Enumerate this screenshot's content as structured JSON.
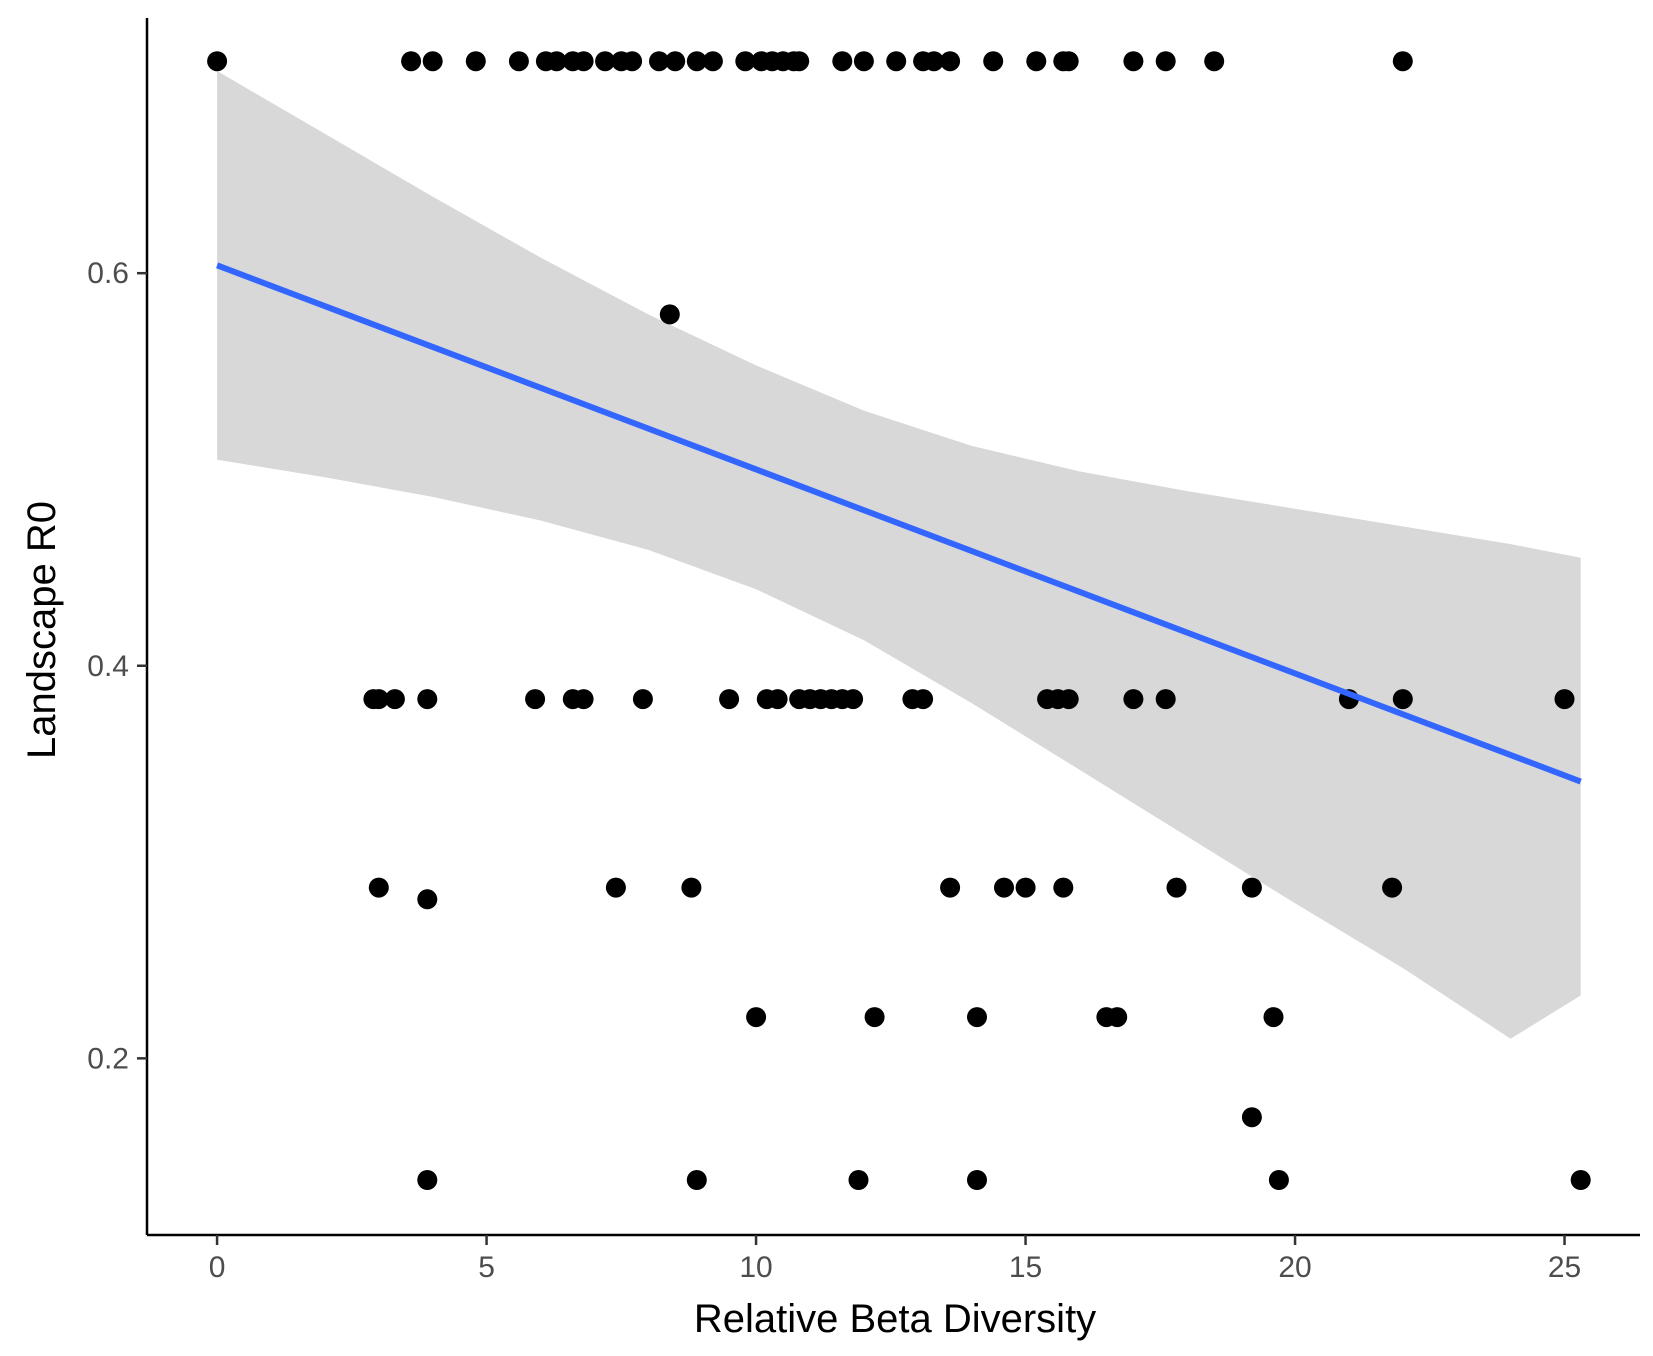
{
  "chart_data": {
    "type": "scatter",
    "title": "",
    "xlabel": "Relative Beta Diversity",
    "ylabel": "Landscape R0",
    "xlim": [
      -1.3,
      26.4
    ],
    "ylim": [
      0.11,
      0.73
    ],
    "xticks": [
      0,
      5,
      10,
      15,
      20,
      25
    ],
    "yticks": [
      0.2,
      0.4,
      0.6
    ],
    "xtick_labels": [
      "0",
      "5",
      "10",
      "15",
      "20",
      "25"
    ],
    "ytick_labels": [
      "0.2",
      "0.4",
      "0.6"
    ],
    "grid": false,
    "legend": "none",
    "colors": {
      "points": "#000000",
      "fit_line": "#3366FF",
      "ribbon": "#BEBEBE",
      "axis": "#000000",
      "tick_text": "#4d4d4d"
    },
    "points": [
      [
        0,
        0.708
      ],
      [
        3.6,
        0.708
      ],
      [
        4.0,
        0.708
      ],
      [
        4.8,
        0.708
      ],
      [
        5.6,
        0.708
      ],
      [
        6.1,
        0.708
      ],
      [
        6.3,
        0.708
      ],
      [
        6.6,
        0.708
      ],
      [
        6.8,
        0.708
      ],
      [
        7.2,
        0.708
      ],
      [
        7.5,
        0.708
      ],
      [
        7.7,
        0.708
      ],
      [
        8.2,
        0.708
      ],
      [
        8.5,
        0.708
      ],
      [
        8.9,
        0.708
      ],
      [
        9.2,
        0.708
      ],
      [
        9.8,
        0.708
      ],
      [
        10.1,
        0.708
      ],
      [
        10.3,
        0.708
      ],
      [
        10.5,
        0.708
      ],
      [
        10.7,
        0.708
      ],
      [
        10.8,
        0.708
      ],
      [
        11.6,
        0.708
      ],
      [
        12.0,
        0.708
      ],
      [
        12.6,
        0.708
      ],
      [
        13.1,
        0.708
      ],
      [
        13.3,
        0.708
      ],
      [
        13.6,
        0.708
      ],
      [
        14.4,
        0.708
      ],
      [
        15.2,
        0.708
      ],
      [
        15.7,
        0.708
      ],
      [
        15.8,
        0.708
      ],
      [
        17.0,
        0.708
      ],
      [
        17.6,
        0.708
      ],
      [
        18.5,
        0.708
      ],
      [
        22.0,
        0.708
      ],
      [
        8.4,
        0.579
      ],
      [
        2.9,
        0.383
      ],
      [
        3.0,
        0.383
      ],
      [
        3.3,
        0.383
      ],
      [
        3.9,
        0.383
      ],
      [
        5.9,
        0.383
      ],
      [
        6.6,
        0.383
      ],
      [
        6.8,
        0.383
      ],
      [
        7.9,
        0.383
      ],
      [
        9.5,
        0.383
      ],
      [
        10.2,
        0.383
      ],
      [
        10.4,
        0.383
      ],
      [
        10.8,
        0.383
      ],
      [
        11.0,
        0.383
      ],
      [
        11.2,
        0.383
      ],
      [
        11.4,
        0.383
      ],
      [
        11.6,
        0.383
      ],
      [
        11.8,
        0.383
      ],
      [
        12.9,
        0.383
      ],
      [
        13.1,
        0.383
      ],
      [
        15.4,
        0.383
      ],
      [
        15.6,
        0.383
      ],
      [
        15.8,
        0.383
      ],
      [
        17.0,
        0.383
      ],
      [
        17.6,
        0.383
      ],
      [
        21.0,
        0.383
      ],
      [
        22.0,
        0.383
      ],
      [
        25.0,
        0.383
      ],
      [
        3.0,
        0.287
      ],
      [
        3.9,
        0.281
      ],
      [
        7.4,
        0.287
      ],
      [
        8.8,
        0.287
      ],
      [
        13.6,
        0.287
      ],
      [
        14.6,
        0.287
      ],
      [
        15.0,
        0.287
      ],
      [
        15.7,
        0.287
      ],
      [
        17.8,
        0.287
      ],
      [
        19.2,
        0.287
      ],
      [
        21.8,
        0.287
      ],
      [
        10.0,
        0.221
      ],
      [
        12.2,
        0.221
      ],
      [
        14.1,
        0.221
      ],
      [
        16.5,
        0.221
      ],
      [
        16.7,
        0.221
      ],
      [
        19.6,
        0.221
      ],
      [
        19.2,
        0.17
      ],
      [
        3.9,
        0.138
      ],
      [
        8.9,
        0.138
      ],
      [
        11.9,
        0.138
      ],
      [
        14.1,
        0.138
      ],
      [
        19.7,
        0.138
      ],
      [
        25.3,
        0.138
      ]
    ],
    "fit_line": {
      "x": [
        0,
        25.3
      ],
      "y": [
        0.604,
        0.341
      ]
    },
    "confidence_band": {
      "x": [
        0,
        2,
        4,
        6,
        8,
        10,
        12,
        14,
        16,
        18,
        20,
        22,
        24,
        25.3
      ],
      "upper": [
        0.703,
        0.671,
        0.639,
        0.608,
        0.579,
        0.553,
        0.53,
        0.512,
        0.499,
        0.489,
        0.48,
        0.471,
        0.462,
        0.455
      ],
      "lower": [
        0.505,
        0.496,
        0.486,
        0.474,
        0.459,
        0.439,
        0.413,
        0.381,
        0.347,
        0.313,
        0.279,
        0.246,
        0.21,
        0.232
      ]
    }
  }
}
